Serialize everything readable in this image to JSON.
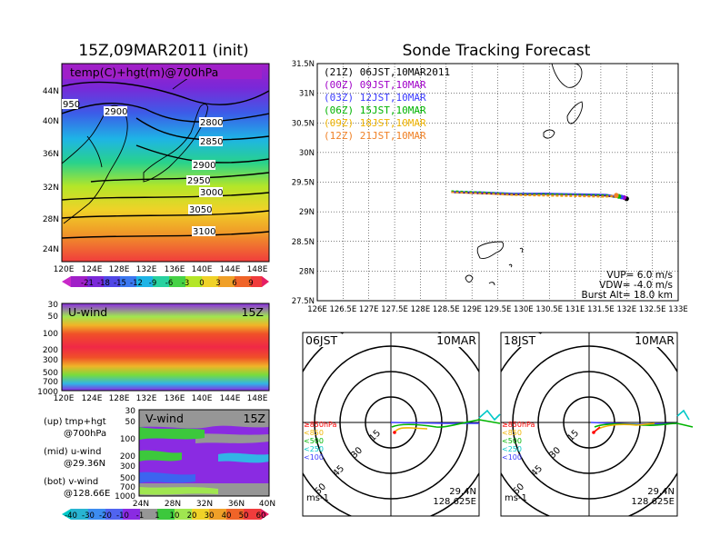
{
  "titles": {
    "left": "15Z,09MAR2011 (init)",
    "right": "Sonde Tracking Forecast"
  },
  "top_map": {
    "label": "temp(C)+hgt(m)@700hPa",
    "lat_ticks": [
      "44N",
      "40N",
      "36N",
      "32N",
      "28N",
      "24N"
    ],
    "lon_ticks": [
      "120E",
      "124E",
      "128E",
      "132E",
      "136E",
      "140E",
      "144E",
      "148E"
    ],
    "contours": [
      "2800",
      "2850",
      "2900",
      "2950",
      "3000",
      "3050",
      "3100"
    ],
    "contour_extra": [
      "950",
      "2900"
    ],
    "colorbar_labels": [
      "-21",
      "-18",
      "-15",
      "-12",
      "-9",
      "-6",
      "-3",
      "0",
      "3",
      "6",
      "9"
    ]
  },
  "uwind": {
    "label": "U-wind",
    "time": "15Z",
    "p_ticks": [
      "30",
      "50",
      "100",
      "200",
      "300",
      "500",
      "700",
      "1000"
    ],
    "lon_ticks": [
      "120E",
      "124E",
      "128E",
      "132E",
      "136E",
      "140E",
      "144E",
      "148E"
    ]
  },
  "vwind": {
    "label": "V-wind",
    "time": "15Z",
    "p_ticks": [
      "30",
      "50",
      "100",
      "200",
      "300",
      "500",
      "700",
      "1000"
    ],
    "lat_ticks": [
      "24N",
      "28N",
      "32N",
      "36N",
      "40N"
    ],
    "colorbar_labels": [
      "-40",
      "-30",
      "-20",
      "-10",
      "-1",
      "1",
      "10",
      "20",
      "30",
      "40",
      "50",
      "60"
    ]
  },
  "legend_text": {
    "up1": "(up) tmp+hgt",
    "up2": "@700hPa",
    "mid1": "(mid) u-wind",
    "mid2": "@29.36N",
    "bot1": "(bot) v-wind",
    "bot2": "@128.66E"
  },
  "track": {
    "legend": [
      {
        "label": "(21Z)  06JST,10MAR2011",
        "color": "#000000"
      },
      {
        "label": "(00Z)  09JST,10MAR",
        "color": "#a000c8"
      },
      {
        "label": "(03Z)  12JST,10MAR",
        "color": "#3c3cff"
      },
      {
        "label": "(06Z)  15JST,10MAR",
        "color": "#00b400"
      },
      {
        "label": "(09Z)  18JST,10MAR",
        "color": "#f0b400"
      },
      {
        "label": "(12Z)  21JST,10MAR",
        "color": "#f08228"
      }
    ],
    "lat_ticks": [
      "31.5N",
      "31N",
      "30.5N",
      "30N",
      "29.5N",
      "29N",
      "28.5N",
      "28N",
      "27.5N"
    ],
    "lon_ticks": [
      "126E",
      "126.5E",
      "127E",
      "127.5E",
      "128E",
      "128.5E",
      "129E",
      "129.5E",
      "130E",
      "130.5E",
      "131E",
      "131.5E",
      "132E",
      "132.5E",
      "133E"
    ],
    "info": {
      "vup": "VUP=  6.0  m/s",
      "vdw": "VDW= -4.0  m/s",
      "burst": "Burst Alt=  18.0  km"
    }
  },
  "chart_data": {
    "type": "line",
    "title": "Sonde Tracking Forecast",
    "xlabel": "",
    "ylabel": "",
    "xlim": [
      126,
      133
    ],
    "ylim": [
      27.5,
      31.5
    ],
    "series": [
      {
        "name": "(21Z)  06JST,10MAR2011",
        "x": [
          128.6,
          129.2,
          129.8,
          130.4,
          131.0,
          131.6,
          132.0
        ],
        "y": [
          29.33,
          29.31,
          29.29,
          29.3,
          29.29,
          29.27,
          29.22
        ]
      },
      {
        "name": "(00Z)  09JST,10MAR",
        "x": [
          128.6,
          129.2,
          129.8,
          130.4,
          131.0,
          131.6,
          131.95
        ],
        "y": [
          29.34,
          29.32,
          29.3,
          29.31,
          29.29,
          29.28,
          29.24
        ]
      },
      {
        "name": "(03Z)  12JST,10MAR",
        "x": [
          128.6,
          129.2,
          129.8,
          130.4,
          131.0,
          131.6,
          131.9
        ],
        "y": [
          29.34,
          29.33,
          29.31,
          29.31,
          29.3,
          29.29,
          29.25
        ]
      },
      {
        "name": "(06Z)  15JST,10MAR",
        "x": [
          128.6,
          129.2,
          129.8,
          130.4,
          131.0,
          131.6,
          131.85
        ],
        "y": [
          29.35,
          29.33,
          29.3,
          29.3,
          29.29,
          29.28,
          29.26
        ]
      },
      {
        "name": "(09Z)  18JST,10MAR",
        "x": [
          128.6,
          129.2,
          129.8,
          130.4,
          131.0,
          131.6,
          131.8
        ],
        "y": [
          29.33,
          29.31,
          29.28,
          29.27,
          29.26,
          29.25,
          29.27
        ]
      },
      {
        "name": "(12Z)  21JST,10MAR",
        "x": [
          128.6,
          129.2,
          129.8,
          130.4,
          131.0,
          131.6,
          131.8
        ],
        "y": [
          29.33,
          29.31,
          29.29,
          29.28,
          29.27,
          29.26,
          29.28
        ]
      }
    ],
    "grid": true
  },
  "polar_left": {
    "time": "06JST",
    "date": "10MAR",
    "lat": "29.4N",
    "lon": "128.625E",
    "unit": "ms-1",
    "rings": [
      "15",
      "30",
      "45",
      "60"
    ],
    "levels": [
      "≥850hPa",
      "<850",
      "<500",
      "<250",
      "<100"
    ]
  },
  "polar_right": {
    "time": "18JST",
    "date": "10MAR",
    "lat": "29.4N",
    "lon": "128.625E",
    "unit": "ms-1",
    "rings": [
      "15",
      "30",
      "45",
      "60"
    ],
    "levels": [
      "≥850hPa",
      "<850",
      "<500",
      "<250",
      "<100"
    ]
  },
  "colors": {
    "level_colors": [
      "#ff0000",
      "#f0b400",
      "#00b400",
      "#00c8c8",
      "#3c3cff"
    ]
  }
}
